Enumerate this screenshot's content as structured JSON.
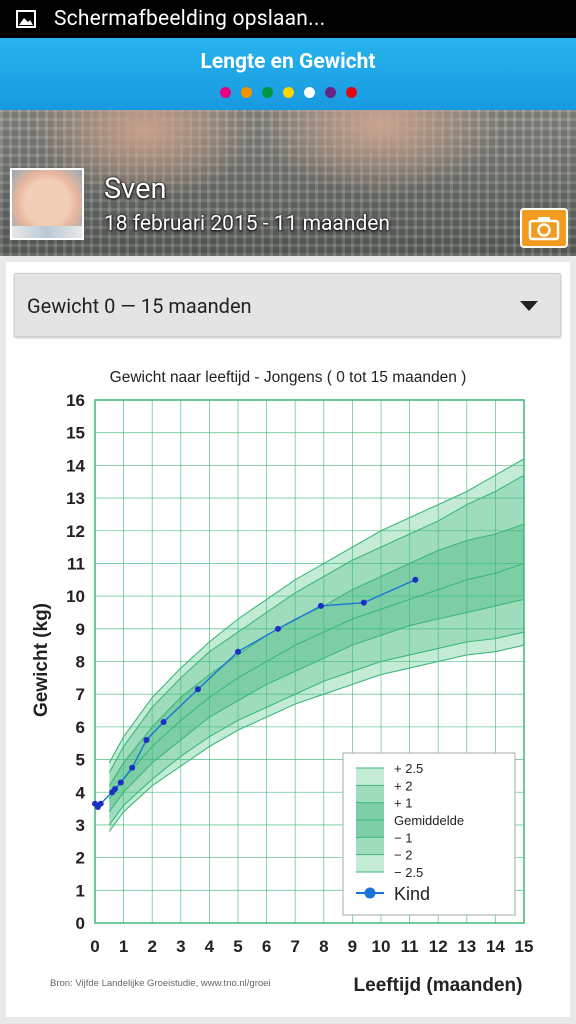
{
  "status_bar": {
    "icon": "image-icon",
    "text": "Schermafbeelding opslaan..."
  },
  "header": {
    "title": "Lengte en Gewicht",
    "page_dots": [
      "#e6007e",
      "#f39200",
      "#009640",
      "#ffd500",
      "#ffffff",
      "#662483",
      "#e30613"
    ]
  },
  "profile": {
    "name": "Sven",
    "birth_and_age": "18 februari 2015 - 11 maanden",
    "camera_icon": "camera-icon",
    "avatar": "baby-avatar"
  },
  "selector": {
    "label": "Gewicht 0 — 15 maanden",
    "icon": "dropdown-arrow-icon"
  },
  "chart_data": {
    "type": "line",
    "title": "Gewicht naar leeftijd - Jongens ( 0 tot 15 maanden )",
    "xlabel": "Leeftijd (maanden)",
    "ylabel": "Gewicht (kg)",
    "xlim": [
      0,
      15
    ],
    "ylim": [
      0,
      16
    ],
    "x_ticks": [
      "0",
      "1",
      "2",
      "3",
      "4",
      "5",
      "6",
      "7",
      "8",
      "9",
      "10",
      "11",
      "12",
      "13",
      "14",
      "15"
    ],
    "y_ticks": [
      "0",
      "1",
      "2",
      "3",
      "4",
      "5",
      "6",
      "7",
      "8",
      "9",
      "10",
      "11",
      "12",
      "13",
      "14",
      "15",
      "16"
    ],
    "grid": true,
    "source": "Bron: Vijfde Landelijke Groeistudie, www.tno.nl/groei",
    "reference_x": [
      0.5,
      1,
      2,
      3,
      4,
      5,
      6,
      7,
      8,
      9,
      10,
      11,
      12,
      13,
      14,
      15
    ],
    "reference_curves": [
      {
        "name": "+ 2.5",
        "values": [
          4.9,
          5.7,
          6.9,
          7.8,
          8.6,
          9.3,
          9.9,
          10.5,
          11.0,
          11.5,
          12.0,
          12.4,
          12.8,
          13.2,
          13.7,
          14.2
        ]
      },
      {
        "name": "+ 2",
        "values": [
          4.6,
          5.4,
          6.6,
          7.5,
          8.3,
          8.9,
          9.5,
          10.1,
          10.6,
          11.1,
          11.5,
          11.9,
          12.3,
          12.8,
          13.2,
          13.7
        ]
      },
      {
        "name": "+ 1",
        "values": [
          4.2,
          4.9,
          6.0,
          6.9,
          7.6,
          8.2,
          8.8,
          9.3,
          9.7,
          10.2,
          10.6,
          11.0,
          11.4,
          11.7,
          11.9,
          12.2
        ]
      },
      {
        "name": "Gemiddelde",
        "values": [
          3.8,
          4.4,
          5.4,
          6.2,
          6.9,
          7.5,
          8.0,
          8.5,
          8.9,
          9.3,
          9.6,
          9.9,
          10.2,
          10.5,
          10.7,
          11.0
        ]
      },
      {
        "name": "− 1",
        "values": [
          3.4,
          4.0,
          4.9,
          5.6,
          6.3,
          6.8,
          7.3,
          7.7,
          8.1,
          8.5,
          8.8,
          9.1,
          9.3,
          9.5,
          9.7,
          9.9
        ]
      },
      {
        "name": "− 2",
        "values": [
          3.0,
          3.6,
          4.4,
          5.1,
          5.7,
          6.2,
          6.6,
          7.0,
          7.4,
          7.7,
          8.0,
          8.2,
          8.4,
          8.6,
          8.7,
          8.9
        ]
      },
      {
        "name": "− 2.5",
        "values": [
          2.8,
          3.4,
          4.2,
          4.8,
          5.4,
          5.9,
          6.3,
          6.7,
          7.0,
          7.3,
          7.6,
          7.8,
          8.0,
          8.2,
          8.3,
          8.5
        ]
      }
    ],
    "band_colors": [
      "#c4ebd6",
      "#9fdcbe",
      "#7dcea7",
      "#7dcea7",
      "#9fdcbe",
      "#c4ebd6"
    ],
    "curve_color": "#3cb878",
    "series": [
      {
        "name": "Kind",
        "color": "#1a73d9",
        "x": [
          0.0,
          0.1,
          0.2,
          0.6,
          0.7,
          0.9,
          1.3,
          1.8,
          2.4,
          3.6,
          5.0,
          6.4,
          7.9,
          9.4,
          11.2
        ],
        "y": [
          3.65,
          3.55,
          3.65,
          4.0,
          4.1,
          4.3,
          4.75,
          5.6,
          6.15,
          7.15,
          8.3,
          9.0,
          9.7,
          9.8,
          10.5
        ]
      }
    ],
    "legend": {
      "position": "bottom-right",
      "items": [
        "+ 2.5",
        "+ 2",
        "+ 1",
        "Gemiddelde",
        "− 1",
        "− 2",
        "− 2.5"
      ],
      "series_label": "Kind"
    }
  }
}
